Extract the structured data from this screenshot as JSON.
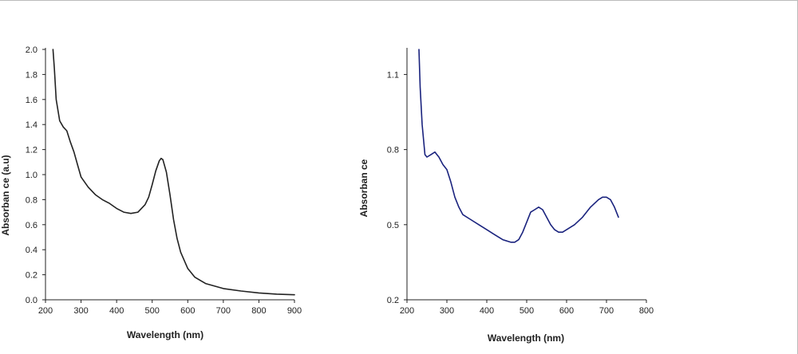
{
  "chart_data": [
    {
      "type": "line",
      "title": "",
      "xlabel": "Wavelength (nm)",
      "ylabel": "Absorban ce (a.u)",
      "xlim": [
        200,
        900
      ],
      "ylim": [
        0.0,
        2.0
      ],
      "grid": false,
      "x_ticks": [
        "200",
        "300",
        "400",
        "500",
        "600",
        "700",
        "800",
        "900"
      ],
      "y_ticks": [
        "0.0",
        "0.2",
        "0.4",
        "0.6",
        "0.8",
        "1.0",
        "1.2",
        "1.4",
        "1.6",
        "1.8",
        "2.0"
      ],
      "line_color": "#222222",
      "series": [
        {
          "x": [
            221,
            225,
            230,
            240,
            250,
            260,
            270,
            280,
            290,
            300,
            320,
            340,
            360,
            380,
            400,
            420,
            440,
            460,
            480,
            490,
            500,
            510,
            520,
            525,
            530,
            540,
            550,
            560,
            570,
            580,
            600,
            620,
            650,
            700,
            750,
            800,
            850,
            900
          ],
          "values": [
            2.05,
            1.85,
            1.6,
            1.43,
            1.38,
            1.35,
            1.26,
            1.18,
            1.08,
            0.98,
            0.9,
            0.84,
            0.8,
            0.77,
            0.73,
            0.7,
            0.69,
            0.7,
            0.76,
            0.82,
            0.92,
            1.03,
            1.11,
            1.13,
            1.12,
            1.02,
            0.84,
            0.64,
            0.49,
            0.38,
            0.25,
            0.18,
            0.13,
            0.09,
            0.07,
            0.055,
            0.045,
            0.04
          ]
        }
      ]
    },
    {
      "type": "line",
      "title": "",
      "xlabel": "Wavelength (nm)",
      "ylabel": "Absorban ce",
      "xlim": [
        200,
        800
      ],
      "ylim": [
        0.2,
        1.2
      ],
      "grid": false,
      "x_ticks": [
        "200",
        "300",
        "400",
        "500",
        "600",
        "700",
        "800"
      ],
      "y_ticks": [
        "0.2",
        "0.5",
        "0.8",
        "1.1"
      ],
      "line_color": "#1a237e",
      "series": [
        {
          "x": [
            230,
            233,
            238,
            245,
            250,
            260,
            270,
            280,
            290,
            300,
            310,
            320,
            330,
            340,
            360,
            380,
            400,
            420,
            440,
            460,
            470,
            480,
            490,
            500,
            510,
            520,
            530,
            540,
            550,
            560,
            570,
            580,
            590,
            600,
            620,
            640,
            660,
            680,
            690,
            700,
            710,
            720,
            730
          ],
          "values": [
            1.2,
            1.05,
            0.9,
            0.78,
            0.77,
            0.78,
            0.79,
            0.77,
            0.74,
            0.72,
            0.67,
            0.61,
            0.57,
            0.54,
            0.52,
            0.5,
            0.48,
            0.46,
            0.44,
            0.43,
            0.43,
            0.44,
            0.47,
            0.51,
            0.55,
            0.56,
            0.57,
            0.56,
            0.53,
            0.5,
            0.48,
            0.47,
            0.47,
            0.48,
            0.5,
            0.53,
            0.57,
            0.6,
            0.61,
            0.61,
            0.6,
            0.57,
            0.53
          ]
        }
      ]
    }
  ]
}
